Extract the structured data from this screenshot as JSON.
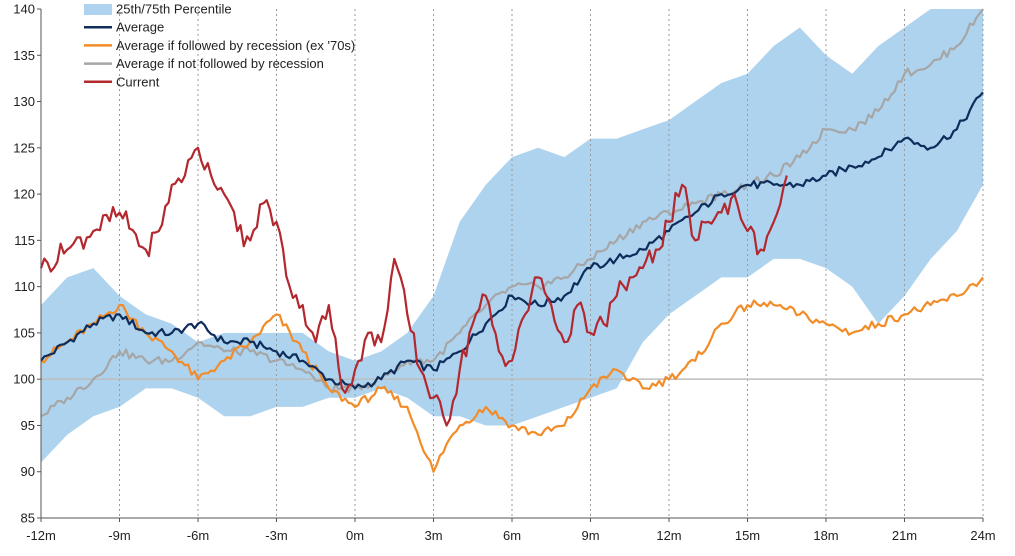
{
  "chart_data": {
    "type": "line",
    "title": "",
    "xlabel": "",
    "ylabel": "",
    "xlim": [
      -12,
      24
    ],
    "ylim": [
      85,
      140
    ],
    "x_ticks": [
      {
        "value": -12,
        "label": "-12m"
      },
      {
        "value": -9,
        "label": "-9m"
      },
      {
        "value": -6,
        "label": "-6m"
      },
      {
        "value": -3,
        "label": "-3m"
      },
      {
        "value": 0,
        "label": "0m"
      },
      {
        "value": 3,
        "label": "3m"
      },
      {
        "value": 6,
        "label": "6m"
      },
      {
        "value": 9,
        "label": "9m"
      },
      {
        "value": 12,
        "label": "12m"
      },
      {
        "value": 15,
        "label": "15m"
      },
      {
        "value": 18,
        "label": "18m"
      },
      {
        "value": 21,
        "label": "21m"
      },
      {
        "value": 24,
        "label": "24m"
      }
    ],
    "y_ticks": [
      85,
      90,
      95,
      100,
      105,
      110,
      115,
      120,
      125,
      130,
      135,
      140
    ],
    "reference_line": 100,
    "vertical_gridlines": "dashed",
    "legend_position": "top-left",
    "band": {
      "name": "25th/75th Percentile",
      "color": "#aed3ef",
      "x": [
        -12,
        -11,
        -10,
        -9,
        -8,
        -7,
        -6,
        -5,
        -4,
        -3,
        -2,
        -1,
        0,
        1,
        2,
        3,
        4,
        5,
        6,
        7,
        8,
        9,
        10,
        11,
        12,
        13,
        14,
        15,
        16,
        17,
        18,
        19,
        20,
        21,
        22,
        23,
        24
      ],
      "lower": [
        91,
        94,
        96,
        97,
        99,
        99,
        98,
        96,
        96,
        97,
        97,
        98,
        98,
        99,
        98,
        96,
        96,
        95,
        95,
        96,
        97,
        98,
        99,
        104,
        107,
        109,
        111,
        111,
        113,
        113,
        112,
        110,
        106,
        109,
        113,
        116,
        121
      ],
      "upper": [
        108,
        111,
        112,
        109,
        107,
        106,
        104,
        105,
        105,
        105,
        105,
        103,
        102,
        103,
        105,
        109,
        117,
        121,
        124,
        125,
        124,
        126,
        126,
        127,
        128,
        130,
        132,
        133,
        136,
        138,
        135,
        133,
        136,
        138,
        140,
        140,
        140
      ]
    },
    "series": [
      {
        "name": "Average",
        "color": "#0e2d5b",
        "x": [
          -12,
          -11,
          -10,
          -9,
          -8,
          -7,
          -6,
          -5,
          -4,
          -3,
          -2,
          -1,
          0,
          1,
          2,
          3,
          4,
          5,
          6,
          7,
          8,
          9,
          10,
          11,
          12,
          13,
          14,
          15,
          16,
          17,
          18,
          19,
          20,
          21,
          22,
          23,
          24
        ],
        "y": [
          102,
          104,
          106,
          107,
          105,
          105,
          106,
          104,
          104,
          103,
          102,
          100,
          99,
          100,
          102,
          101,
          103,
          106,
          109,
          108,
          109,
          112,
          113,
          114,
          116,
          118,
          120,
          121,
          121,
          121,
          122,
          123,
          124,
          126,
          125,
          127,
          131
        ]
      },
      {
        "name": "Average if followed by recession (ex '70s)",
        "color": "#f28c28",
        "x": [
          -12,
          -11,
          -10,
          -9,
          -8,
          -7,
          -6,
          -5,
          -4,
          -3,
          -2,
          -1,
          0,
          1,
          2,
          3,
          3.5,
          4,
          5,
          6,
          7,
          8,
          9,
          10,
          11,
          12,
          13,
          14,
          15,
          16,
          17,
          18,
          19,
          20,
          21,
          22,
          23,
          24
        ],
        "y": [
          102,
          104,
          106,
          108,
          105,
          103,
          100,
          102,
          104,
          107,
          103,
          99,
          97,
          99,
          97,
          90,
          93,
          95,
          97,
          95,
          94,
          95,
          99,
          101,
          99,
          100,
          102,
          106,
          108,
          108,
          107,
          106,
          105,
          106,
          107,
          108,
          109,
          111
        ]
      },
      {
        "name": "Average if not followed by recession",
        "color": "#a6a6a6",
        "x": [
          -12,
          -11,
          -10,
          -9,
          -8,
          -7,
          -6,
          -5,
          -4,
          -3,
          -2,
          -1,
          0,
          1,
          2,
          3,
          4,
          5,
          6,
          7,
          8,
          9,
          10,
          11,
          12,
          13,
          14,
          15,
          16,
          17,
          18,
          19,
          20,
          21,
          22,
          23,
          24
        ],
        "y": [
          96,
          98,
          100,
          103,
          102,
          102,
          104,
          103,
          103,
          102,
          101,
          99,
          99,
          100,
          102,
          102,
          105,
          108,
          110,
          110,
          111,
          113,
          115,
          117,
          118,
          119,
          120,
          121,
          122,
          124,
          127,
          127,
          129,
          133,
          134,
          136,
          140
        ]
      },
      {
        "name": "Current",
        "color": "#b3282e",
        "x": [
          -12,
          -11,
          -10,
          -9,
          -8,
          -7.5,
          -7,
          -6.5,
          -6,
          -5.5,
          -5,
          -4.5,
          -4,
          -3.5,
          -3,
          -2.5,
          -2,
          -1.5,
          -1,
          -0.5,
          0,
          0.5,
          1,
          1.5,
          2,
          2.5,
          3,
          3.5,
          4,
          4.5,
          5,
          5.5,
          6,
          6.5,
          7,
          7.5,
          8,
          8.5,
          9,
          9.5,
          10,
          10.5,
          11,
          11.5,
          12,
          12.5,
          13,
          13.5,
          14,
          14.5,
          15,
          15.5,
          16,
          16.5
        ],
        "y": [
          112,
          114,
          116,
          118,
          114,
          116,
          121,
          122,
          125,
          122,
          120,
          116,
          115,
          119,
          117,
          110,
          108,
          104,
          108,
          99,
          101,
          105,
          104,
          113,
          107,
          101,
          98,
          95,
          101,
          106,
          109,
          103,
          102,
          107,
          111,
          108,
          104,
          108,
          105,
          106,
          109,
          111,
          112,
          114,
          117,
          121,
          115,
          117,
          118,
          120,
          116,
          114,
          117,
          122
        ]
      }
    ]
  }
}
